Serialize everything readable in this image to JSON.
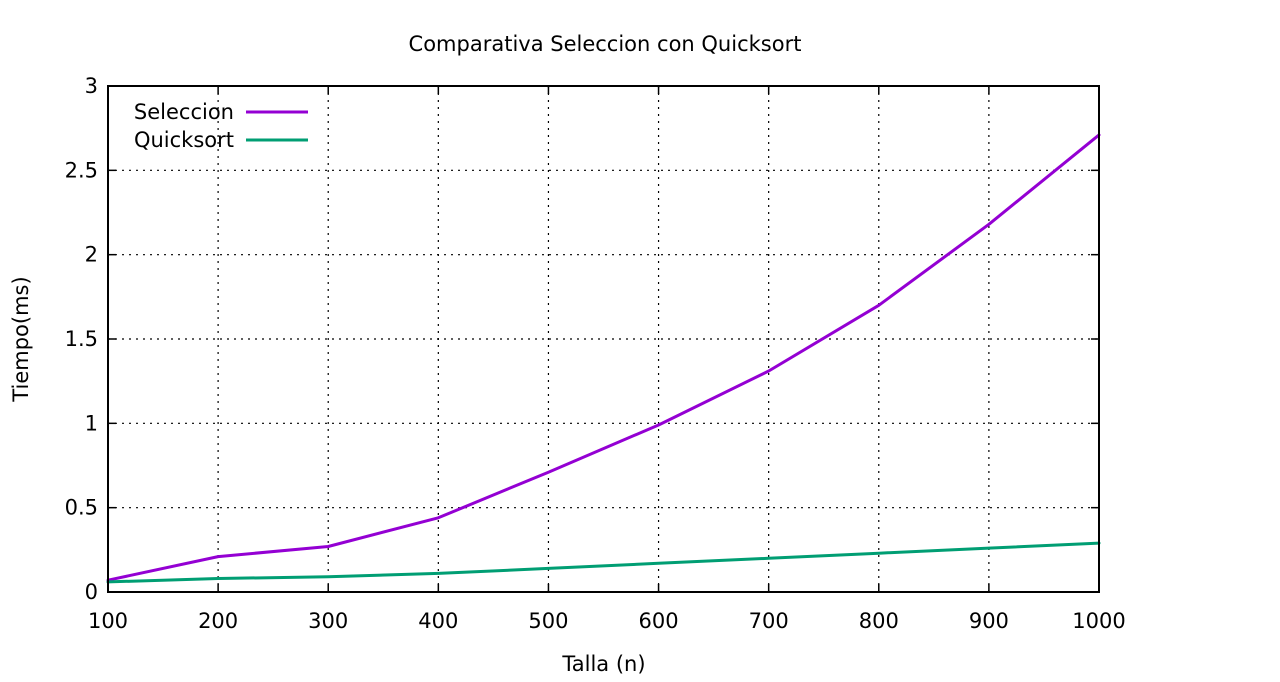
{
  "chart_data": {
    "type": "line",
    "title": "Comparativa Seleccion con Quicksort",
    "xlabel": "Talla (n)",
    "ylabel": "Tiempo(ms)",
    "x": [
      100,
      200,
      300,
      400,
      500,
      600,
      700,
      800,
      900,
      1000
    ],
    "xlim": [
      100,
      1000
    ],
    "ylim": [
      0,
      3
    ],
    "xticks": [
      100,
      200,
      300,
      400,
      500,
      600,
      700,
      800,
      900,
      1000
    ],
    "xtick_labels": [
      "100",
      "200",
      "300",
      "400",
      "500",
      "600",
      "700",
      "800",
      "900",
      "1000"
    ],
    "yticks": [
      0,
      0.5,
      1,
      1.5,
      2,
      2.5,
      3
    ],
    "ytick_labels": [
      "0",
      "0.5",
      "1",
      "1.5",
      "2",
      "2.5",
      "3"
    ],
    "grid": true,
    "legend_position": "top-left",
    "series": [
      {
        "name": "Seleccion",
        "color": "#9400d3",
        "values": [
          0.07,
          0.21,
          0.27,
          0.44,
          0.71,
          0.99,
          1.31,
          1.7,
          2.18,
          2.71
        ]
      },
      {
        "name": "Quicksort",
        "color": "#009e73",
        "values": [
          0.06,
          0.08,
          0.09,
          0.11,
          0.14,
          0.17,
          0.2,
          0.23,
          0.26,
          0.29
        ]
      }
    ]
  }
}
